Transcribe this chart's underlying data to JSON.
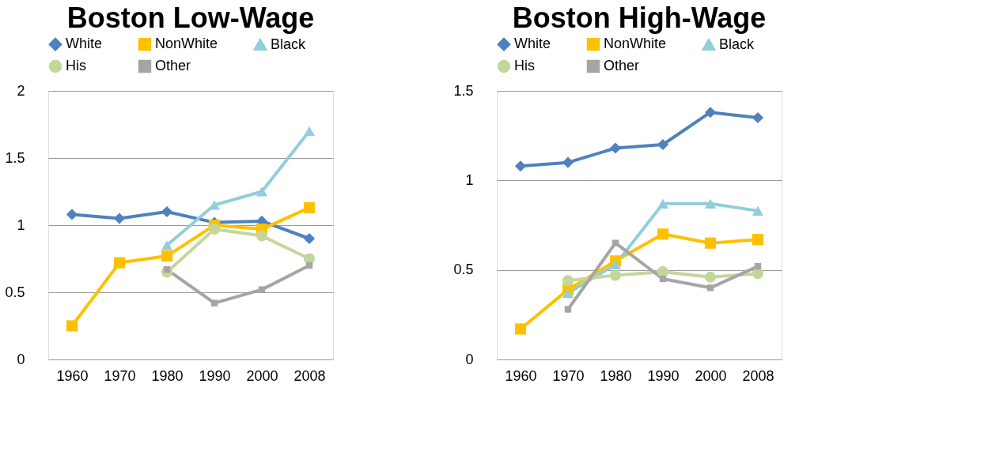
{
  "chart_data": [
    {
      "type": "line",
      "title": "Boston Low-Wage",
      "categories": [
        "1960",
        "1970",
        "1980",
        "1990",
        "2000",
        "2008"
      ],
      "ylim": [
        0,
        2
      ],
      "yticks": [
        0,
        0.5,
        1,
        1.5,
        2
      ],
      "grid": "y",
      "legend": "top left",
      "series": [
        {
          "name": "White",
          "color": "#4f81bd",
          "marker": "diamond",
          "values": [
            1.08,
            1.05,
            1.1,
            1.02,
            1.03,
            0.9
          ]
        },
        {
          "name": "NonWhite",
          "color": "#ffc000",
          "marker": "square",
          "values": [
            0.25,
            0.72,
            0.77,
            1.0,
            0.97,
            1.13
          ]
        },
        {
          "name": "Black",
          "color": "#92cddc",
          "marker": "triangle",
          "values": [
            null,
            null,
            0.85,
            1.15,
            1.25,
            1.7
          ]
        },
        {
          "name": "His",
          "color": "#c4d79b",
          "marker": "circle",
          "values": [
            null,
            null,
            0.65,
            0.97,
            0.92,
            0.75
          ]
        },
        {
          "name": "Other",
          "color": "#a5a5a5",
          "marker": "square",
          "values": [
            null,
            null,
            0.67,
            0.42,
            0.52,
            0.7
          ]
        }
      ]
    },
    {
      "type": "line",
      "title": "Boston High-Wage",
      "categories": [
        "1960",
        "1970",
        "1980",
        "1990",
        "2000",
        "2008"
      ],
      "ylim": [
        0,
        1.5
      ],
      "yticks": [
        0,
        0.5,
        1,
        1.5
      ],
      "grid": "y",
      "legend": "top left",
      "series": [
        {
          "name": "White",
          "color": "#4f81bd",
          "marker": "diamond",
          "values": [
            1.08,
            1.1,
            1.18,
            1.2,
            1.38,
            1.35
          ]
        },
        {
          "name": "NonWhite",
          "color": "#ffc000",
          "marker": "square",
          "values": [
            0.17,
            0.39,
            0.55,
            0.7,
            0.65,
            0.67
          ]
        },
        {
          "name": "Black",
          "color": "#92cddc",
          "marker": "triangle",
          "values": [
            null,
            0.37,
            0.53,
            0.87,
            0.87,
            0.83
          ]
        },
        {
          "name": "His",
          "color": "#c4d79b",
          "marker": "circle",
          "values": [
            null,
            0.44,
            0.47,
            0.49,
            0.46,
            0.48
          ]
        },
        {
          "name": "Other",
          "color": "#a5a5a5",
          "marker": "square",
          "values": [
            null,
            0.28,
            0.65,
            0.45,
            0.4,
            0.52
          ]
        }
      ]
    }
  ]
}
